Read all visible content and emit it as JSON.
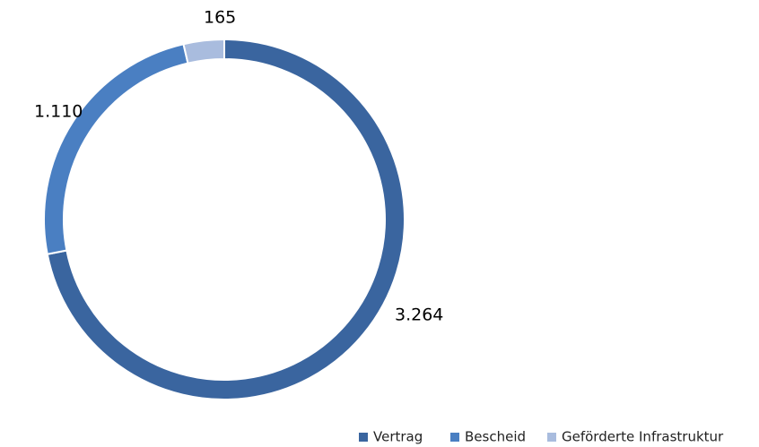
{
  "chart_data": {
    "type": "donut",
    "categories": [
      "Vertrag",
      "Bescheid",
      "Geförderte Infrastruktur"
    ],
    "values": [
      3264,
      1110,
      165
    ],
    "value_labels": [
      "3.264",
      "1.110",
      "165"
    ],
    "colors": [
      "#3a659f",
      "#4a7fc2",
      "#a9bcde"
    ],
    "legend": "bottom-right"
  }
}
